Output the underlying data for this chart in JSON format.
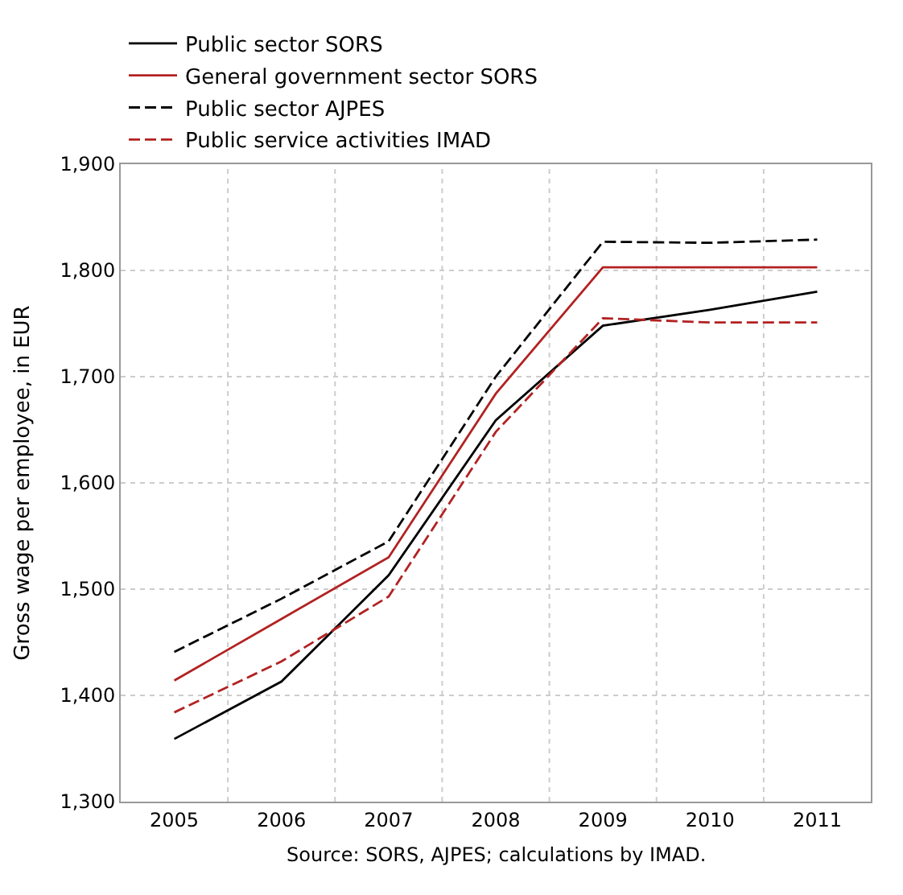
{
  "chart_data": {
    "type": "line",
    "ylabel": "Gross wage per employee, in EUR",
    "categories": [
      "2005",
      "2006",
      "2007",
      "2008",
      "2009",
      "2010",
      "2011"
    ],
    "series": [
      {
        "name": "Public sector SORS",
        "color": "#000000",
        "line_style": "solid",
        "values": [
          1359,
          1413,
          1513,
          1659,
          1748,
          1763,
          1780
        ]
      },
      {
        "name": "General government sector SORS",
        "color": "#b22222",
        "line_style": "solid",
        "values": [
          1414,
          1472,
          1530,
          1684,
          1803,
          1803,
          1803
        ]
      },
      {
        "name": "Public sector AJPES",
        "color": "#000000",
        "line_style": "dashed",
        "values": [
          1441,
          1491,
          1545,
          1700,
          1827,
          1826,
          1829
        ]
      },
      {
        "name": "Public service activities IMAD",
        "color": "#b22222",
        "line_style": "dashed",
        "values": [
          1384,
          1432,
          1493,
          1648,
          1755,
          1751,
          1751
        ]
      }
    ],
    "ylim": [
      1300,
      1900
    ],
    "yticks": [
      {
        "value": 1300,
        "label": "1,300"
      },
      {
        "value": 1400,
        "label": "1,400"
      },
      {
        "value": 1500,
        "label": "1,500"
      },
      {
        "value": 1600,
        "label": "1,600"
      },
      {
        "value": 1700,
        "label": "1,700"
      },
      {
        "value": 1800,
        "label": "1,800"
      },
      {
        "value": 1900,
        "label": "1,900"
      }
    ],
    "grid": true,
    "legend": "top left",
    "marker": "none",
    "annotations": [
      "Source: SORS, AJPES; calculations by IMAD."
    ]
  }
}
